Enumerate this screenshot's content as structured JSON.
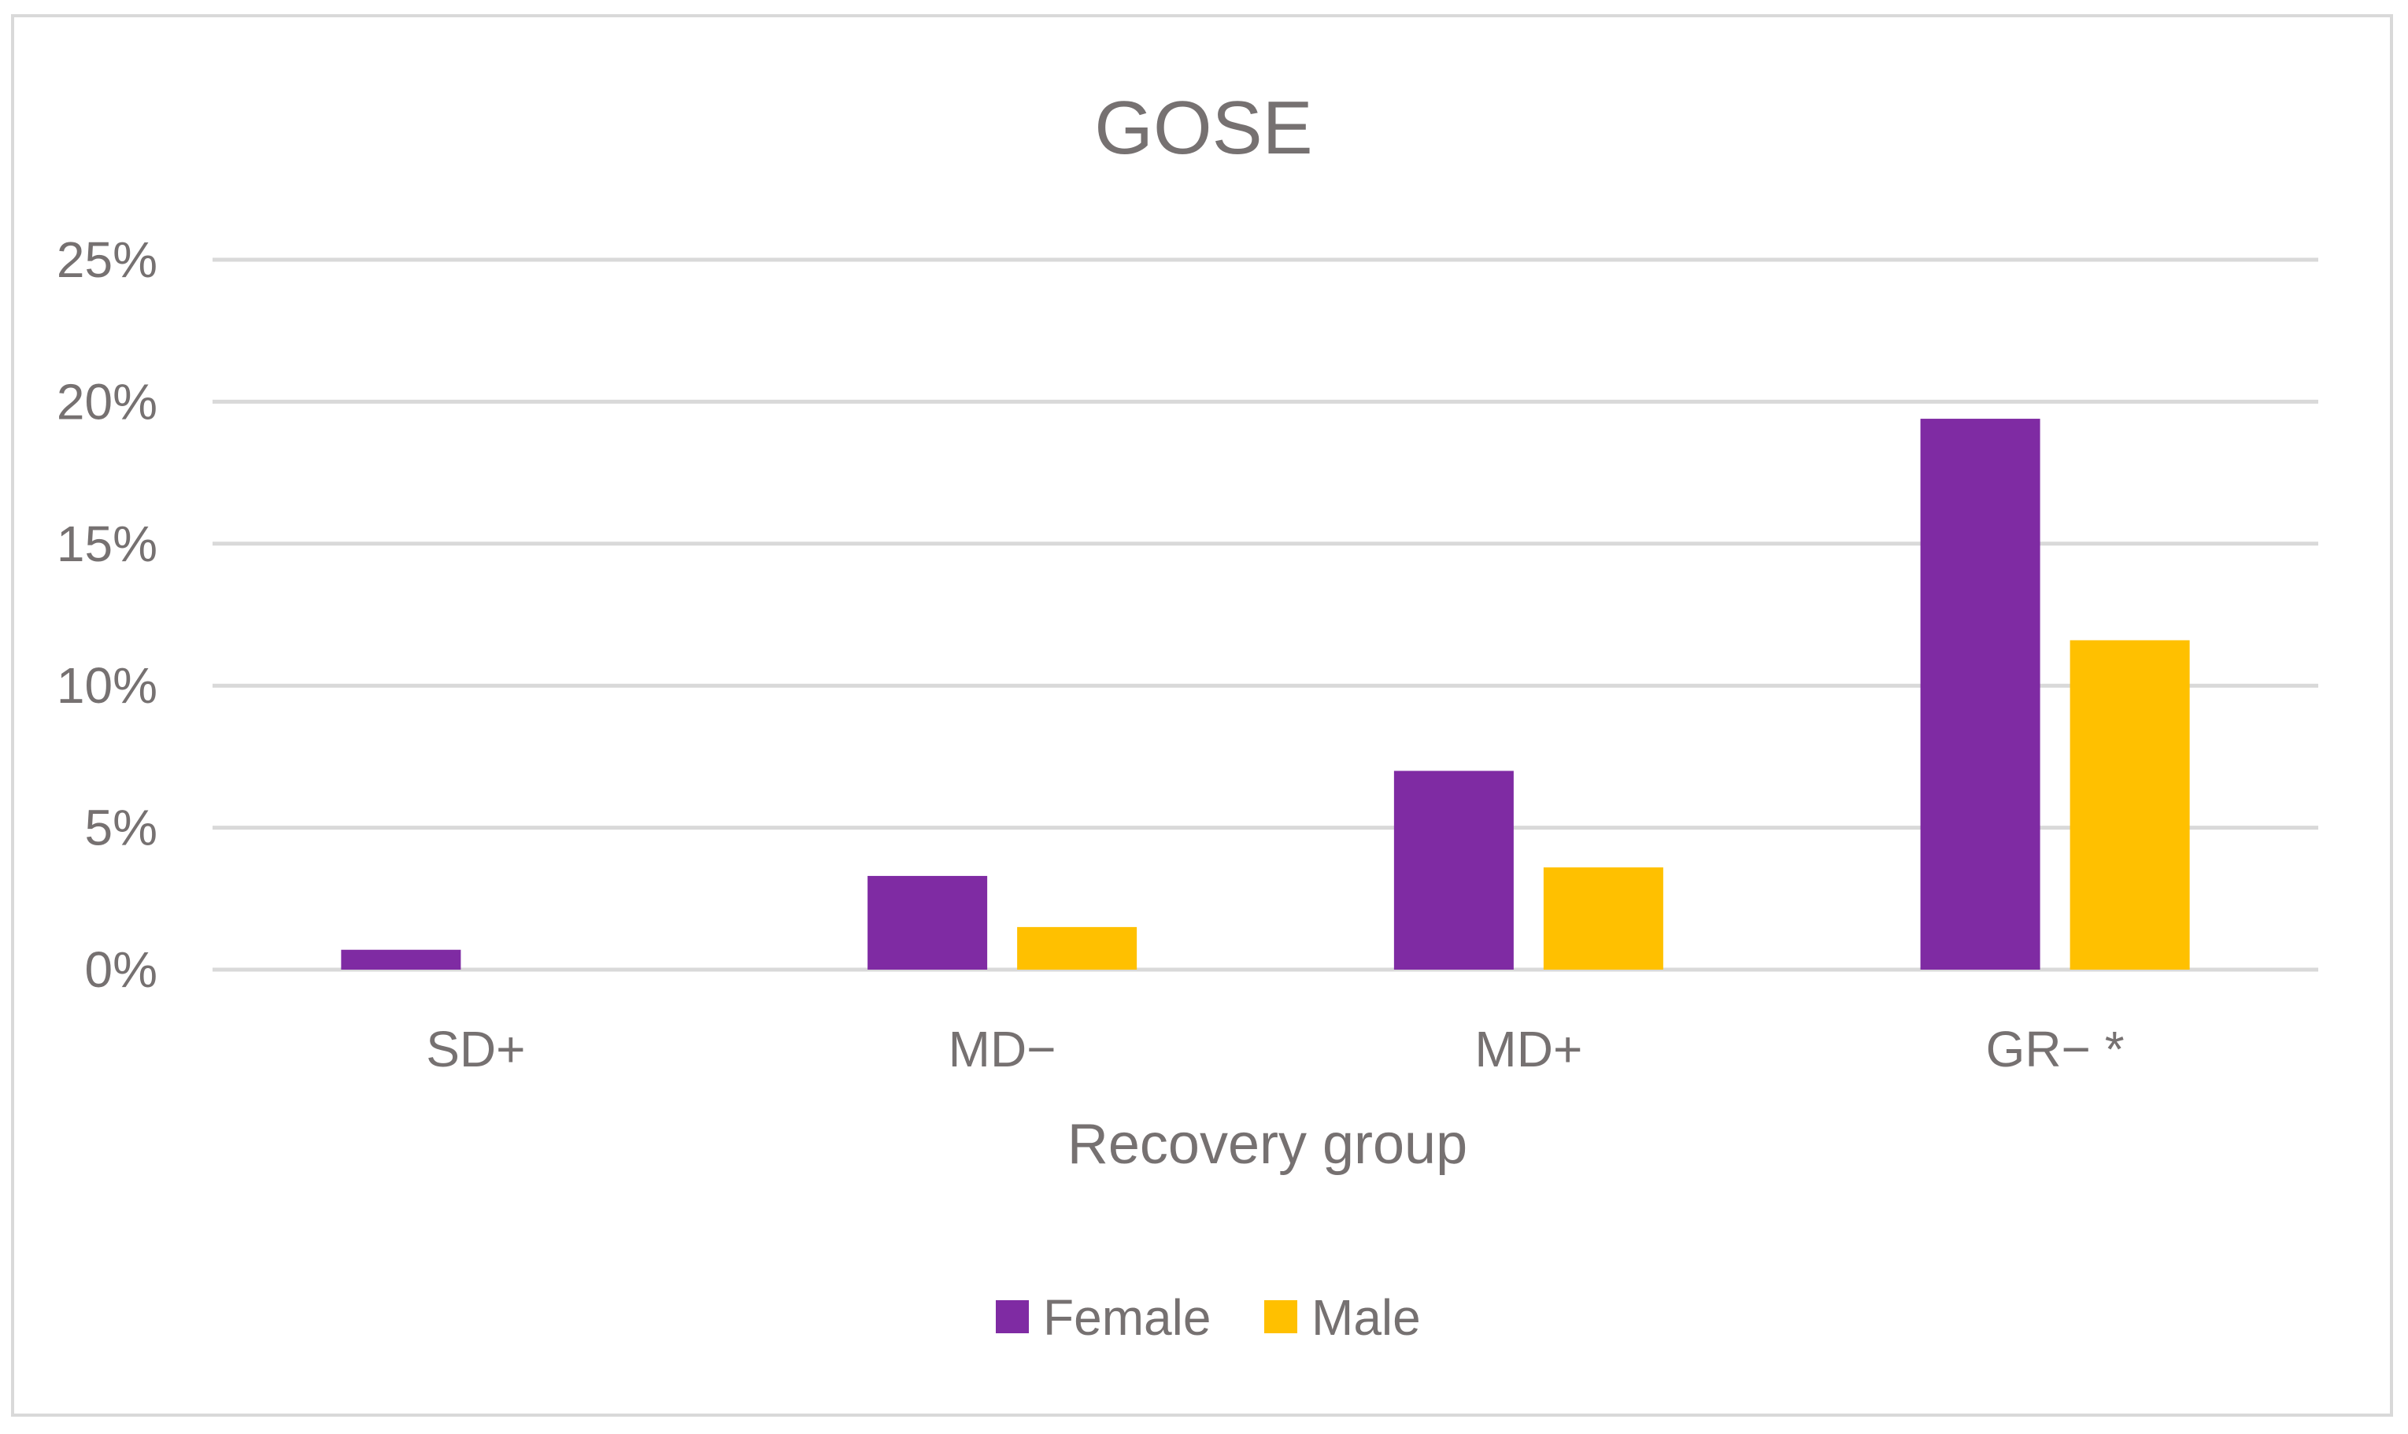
{
  "chart_data": {
    "type": "bar",
    "title": "GOSE",
    "xlabel": "Recovery group",
    "ylabel": "",
    "categories": [
      "SD+",
      "MD−",
      "MD+",
      "GR− *"
    ],
    "series": [
      {
        "name": "Female",
        "color": "#7f2ba3",
        "values": [
          0.7,
          3.3,
          7.0,
          19.4
        ]
      },
      {
        "name": "Male",
        "color": "#ffc000",
        "values": [
          0.0,
          1.5,
          3.6,
          11.6
        ]
      }
    ],
    "ylim": [
      0,
      25
    ],
    "yticks": [
      0,
      5,
      10,
      15,
      20,
      25
    ],
    "ytick_labels": [
      "0%",
      "5%",
      "10%",
      "15%",
      "20%",
      "25%"
    ],
    "grid": true,
    "legend_position": "bottom"
  }
}
